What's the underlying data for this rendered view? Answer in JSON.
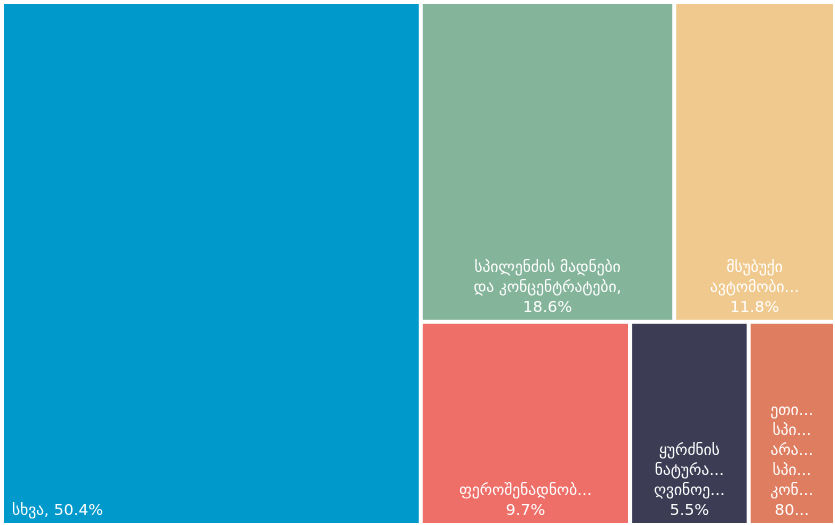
{
  "chart_data": {
    "type": "treemap",
    "title": "",
    "items": [
      {
        "id": "other",
        "label_lines": [
          "სხვა, 50.4%"
        ],
        "value": 50.4,
        "color": "#0099CC",
        "label_anchor": "start"
      },
      {
        "id": "copper",
        "label_lines": [
          "სპილენძის მადნები",
          "და კონცენტრატები,",
          "18.6%"
        ],
        "value": 18.6,
        "color": "#84B59A",
        "label_anchor": "middle"
      },
      {
        "id": "cars",
        "label_lines": [
          "მსუბუქი",
          "ავტომობი...",
          "11.8%"
        ],
        "value": 11.8,
        "color": "#F0C98E",
        "label_anchor": "middle"
      },
      {
        "id": "ferroalloys",
        "label_lines": [
          "ფეროშენადნობ...",
          "9.7%"
        ],
        "value": 9.7,
        "color": "#EE6E68",
        "label_anchor": "middle"
      },
      {
        "id": "wine",
        "label_lines": [
          "ყურძნის",
          "ნატურა...",
          "ღვინოე...",
          "5.5%"
        ],
        "value": 5.5,
        "color": "#3C3C55",
        "label_anchor": "middle"
      },
      {
        "id": "spirits",
        "label_lines": [
          "ეთი...",
          "სპი...",
          "არა...",
          "სპი...",
          "კონ...",
          "80..."
        ],
        "value": 4.0,
        "color": "#DF7D61",
        "label_anchor": "middle"
      }
    ]
  }
}
